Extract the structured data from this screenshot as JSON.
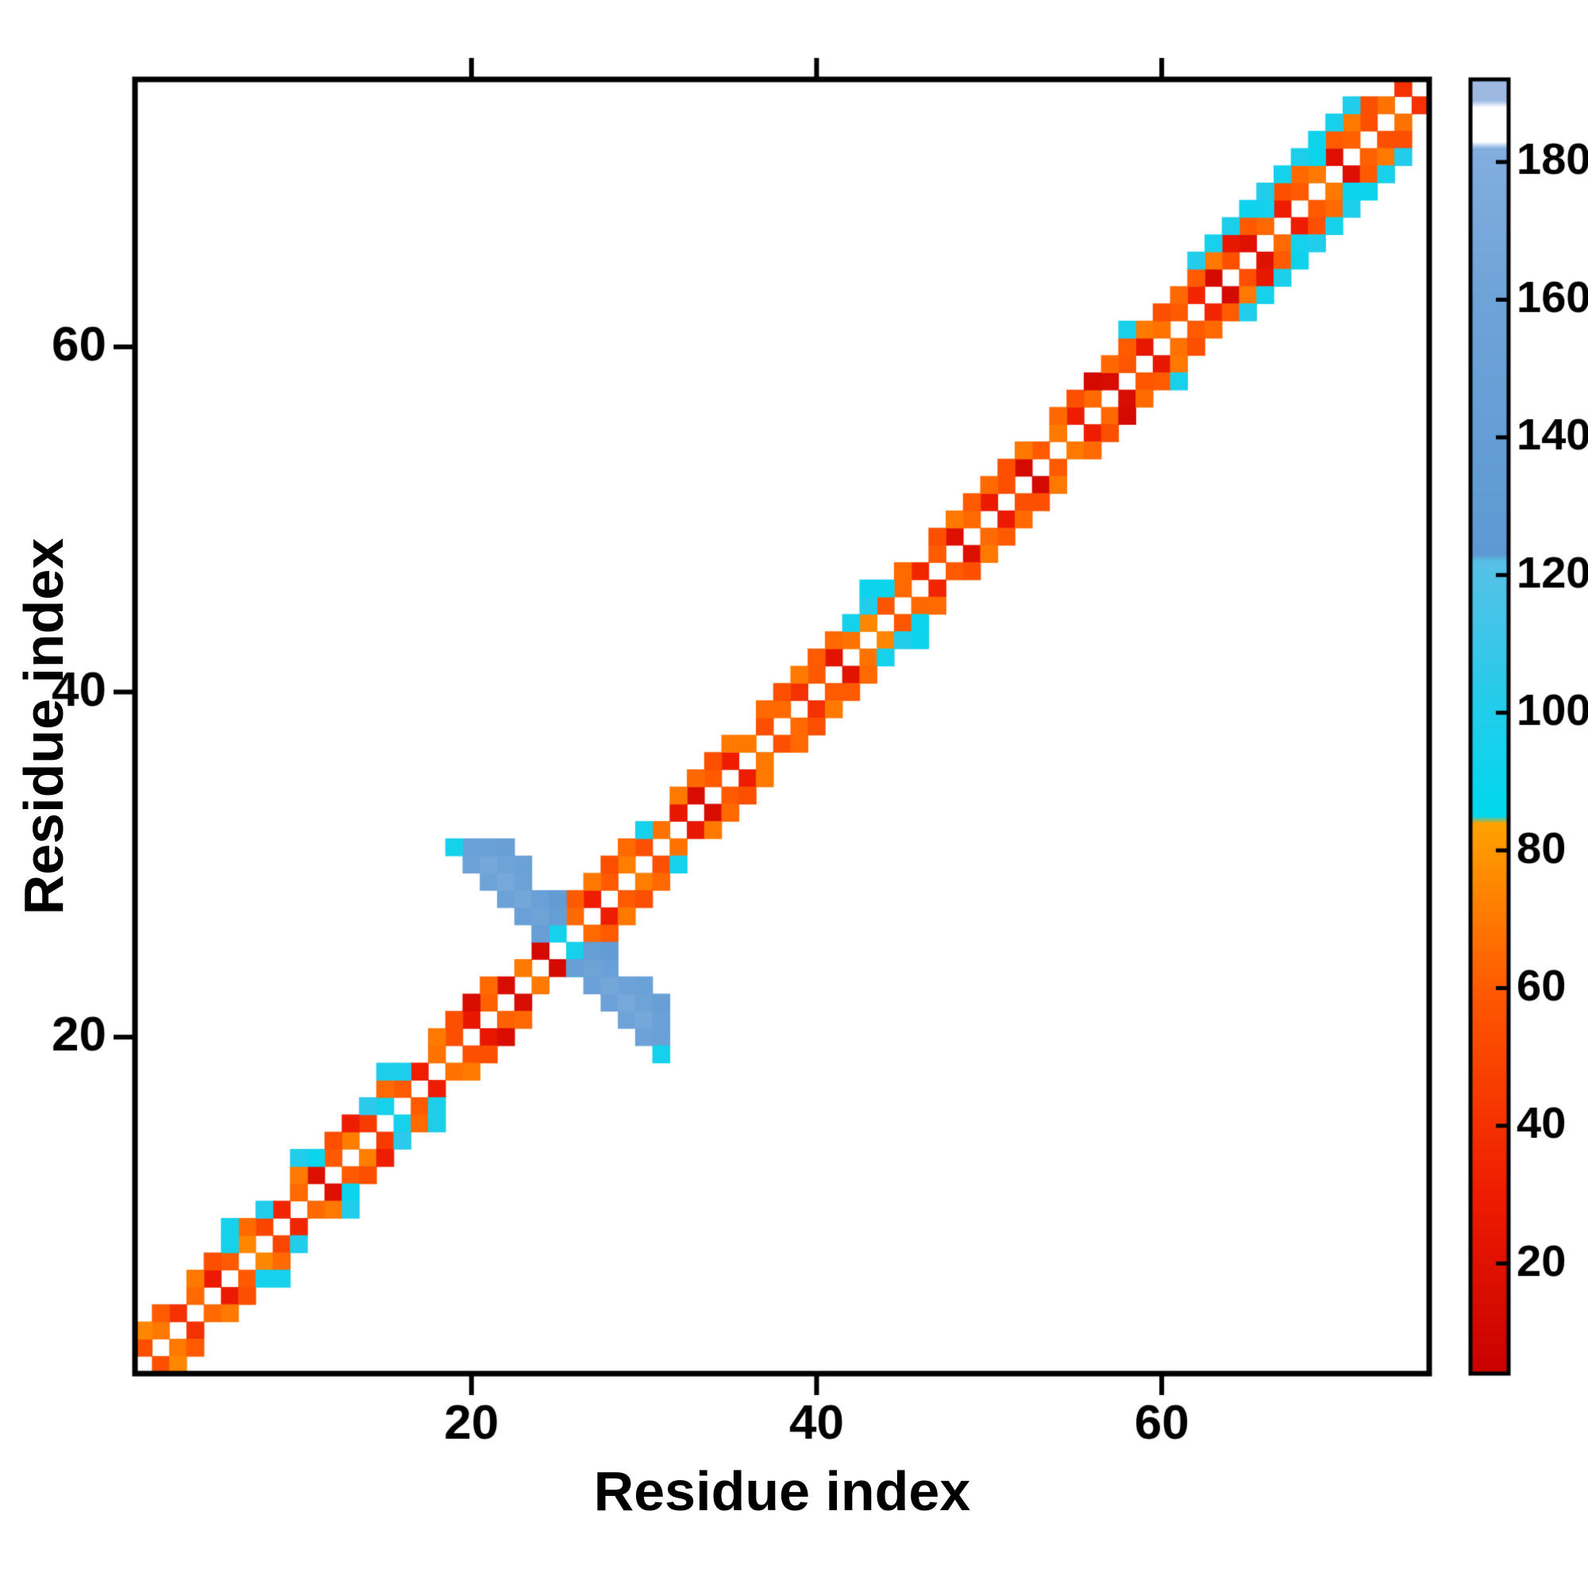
{
  "chart_data": {
    "type": "heatmap",
    "title": "",
    "xlabel": "Residue index",
    "ylabel": "Residue index",
    "n_residues": 75,
    "axis_range": [
      0.5,
      75.5
    ],
    "x_ticks": [
      20,
      40,
      60
    ],
    "y_ticks": [
      20,
      40,
      60
    ],
    "grid": false,
    "symmetric": true,
    "colorbar": {
      "ticks": [
        20,
        40,
        60,
        80,
        100,
        120,
        140,
        160,
        180
      ],
      "vmin": 4,
      "vmax": 192,
      "position": "right"
    },
    "colormap": {
      "stops": [
        [
          4,
          "#c80000"
        ],
        [
          30,
          "#ee1c00"
        ],
        [
          60,
          "#ff5a00"
        ],
        [
          84,
          "#ffa200"
        ],
        [
          85,
          "#00d8ee"
        ],
        [
          105,
          "#2cc9ea"
        ],
        [
          122,
          "#58c0e6"
        ],
        [
          123,
          "#5d99d3"
        ],
        [
          160,
          "#6ea3d8"
        ],
        [
          182,
          "#82aede"
        ],
        [
          183,
          "#ffffff"
        ],
        [
          188,
          "#ffffff"
        ],
        [
          189,
          "#9db9e2"
        ],
        [
          192,
          "#9db9e2"
        ]
      ]
    },
    "band_offset1": {
      "start_index": 1,
      "offset": 1,
      "values": [
        55,
        70,
        40,
        65,
        28,
        60,
        75,
        50,
        35,
        65,
        18,
        60,
        72,
        45,
        95,
        60,
        30,
        68,
        55,
        25,
        62,
        15,
        70,
        12,
        95,
        65,
        30,
        60,
        72,
        55,
        68,
        25,
        15,
        60,
        30,
        70,
        55,
        65,
        40,
        60,
        22,
        68,
        75,
        58,
        65,
        35,
        60,
        18,
        65,
        28,
        55,
        12,
        60,
        70,
        30,
        65,
        15,
        58,
        25,
        68,
        60,
        35,
        12,
        55,
        20,
        65,
        30,
        60,
        70,
        18,
        62,
        55,
        68,
        40
      ]
    },
    "band_offset2": {
      "start_index": 1,
      "offset": 2,
      "values": [
        75,
        60,
        null,
        70,
        55,
        95,
        65,
        100,
        null,
        70,
        90,
        55,
        30,
        105,
        65,
        98,
        null,
        70,
        55,
        15,
        65,
        null,
        null,
        90,
        null,
        60,
        70,
        55,
        65,
        95,
        null,
        70,
        65,
        55,
        70,
        null,
        65,
        55,
        70,
        60,
        65,
        95,
        100,
        90,
        65,
        null,
        55,
        70,
        60,
        65,
        55,
        70,
        null,
        65,
        55,
        12,
        65,
        60,
        70,
        55,
        65,
        60,
        70,
        25,
        60,
        95,
        55,
        65,
        90,
        60,
        70,
        55,
        null
      ]
    },
    "band_offset3": {
      "offset": 3,
      "cells": [
        [
          6,
          95
        ],
        [
          10,
          100
        ],
        [
          15,
          98
        ],
        [
          43,
          92
        ],
        [
          58,
          96
        ],
        [
          62,
          100
        ],
        [
          63,
          95
        ],
        [
          64,
          98
        ],
        [
          65,
          92
        ],
        [
          66,
          100
        ],
        [
          67,
          95
        ],
        [
          68,
          98
        ],
        [
          69,
          92
        ],
        [
          70,
          96
        ],
        [
          71,
          100
        ]
      ]
    },
    "cluster_cells": [
      [
        20,
        30,
        155
      ],
      [
        20,
        31,
        150
      ],
      [
        21,
        29,
        160
      ],
      [
        21,
        30,
        168
      ],
      [
        21,
        31,
        152
      ],
      [
        22,
        28,
        158
      ],
      [
        22,
        29,
        170
      ],
      [
        22,
        30,
        160
      ],
      [
        22,
        31,
        148
      ],
      [
        23,
        27,
        150
      ],
      [
        23,
        28,
        165
      ],
      [
        23,
        29,
        155
      ],
      [
        23,
        30,
        152
      ],
      [
        24,
        26,
        145
      ],
      [
        24,
        27,
        160
      ],
      [
        24,
        28,
        150
      ],
      [
        25,
        27,
        140
      ],
      [
        25,
        28,
        135
      ],
      [
        19,
        31,
        95
      ]
    ]
  }
}
